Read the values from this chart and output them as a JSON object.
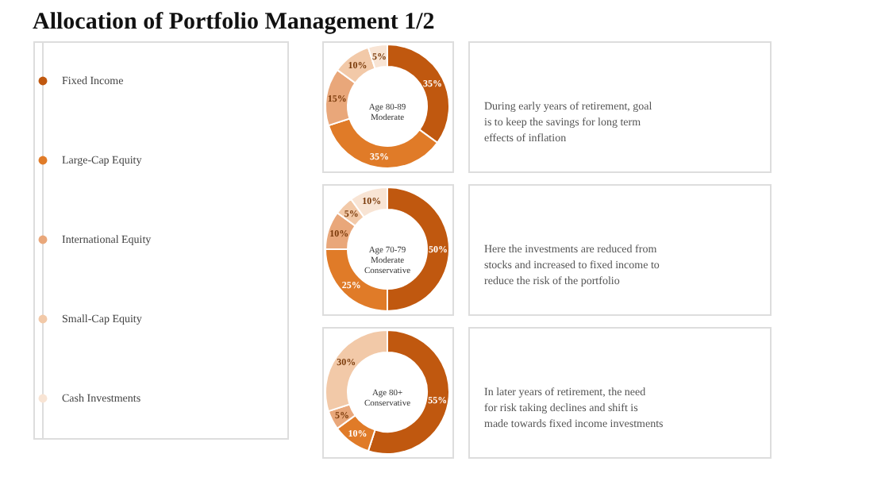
{
  "chart_data": [
    {
      "type": "donut",
      "title": "Allocation of Portfolio Management 1/2",
      "categories": [
        "Fixed Income",
        "Large-Cap  Equity",
        "International  Equity",
        "Small-Cap Equity",
        "Cash  Investments"
      ],
      "values": [
        35,
        35,
        15,
        10,
        5
      ],
      "value_labels": [
        "35%",
        "35%",
        "15%",
        "10%",
        "5%"
      ],
      "colors": [
        "#c0580f",
        "#e07b28",
        "#e9a77a",
        "#f2c9a8",
        "#f8e4d4"
      ],
      "legend": "left",
      "annotations": [
        "Age 80-89 Moderate",
        "During early years of retirement,  goal is to keep the savings for long term effects of inflation"
      ]
    },
    {
      "type": "donut",
      "categories": [
        null,
        null,
        null,
        null,
        null
      ],
      "values": [
        50,
        25,
        10,
        5,
        10
      ],
      "value_labels": [
        "50%",
        "25%",
        "10%",
        "5%",
        "10%"
      ],
      "colors": [
        "#c0580f",
        "#e07b28",
        "#e9a77a",
        "#f2c9a8",
        "#f8e4d4"
      ],
      "annotations": [
        "Age 70-79 Moderate Conservative",
        "Here the investments are reduced from stocks and increased to fixed income to reduce the risk of the portfolio"
      ]
    },
    {
      "type": "donut",
      "categories": [
        null,
        null,
        null,
        null
      ],
      "values": [
        55,
        10,
        5,
        30
      ],
      "value_labels": [
        "55%",
        "10%",
        "5%",
        "30%"
      ],
      "colors": [
        "#c0580f",
        "#e07b28",
        "#e9a77a",
        "#f2c9a8"
      ],
      "annotations": [
        "Age 80+ Conservative",
        "In later years of retirement,  the need for risk taking declines and shift is made towards fixed income investments"
      ]
    }
  ]
}
